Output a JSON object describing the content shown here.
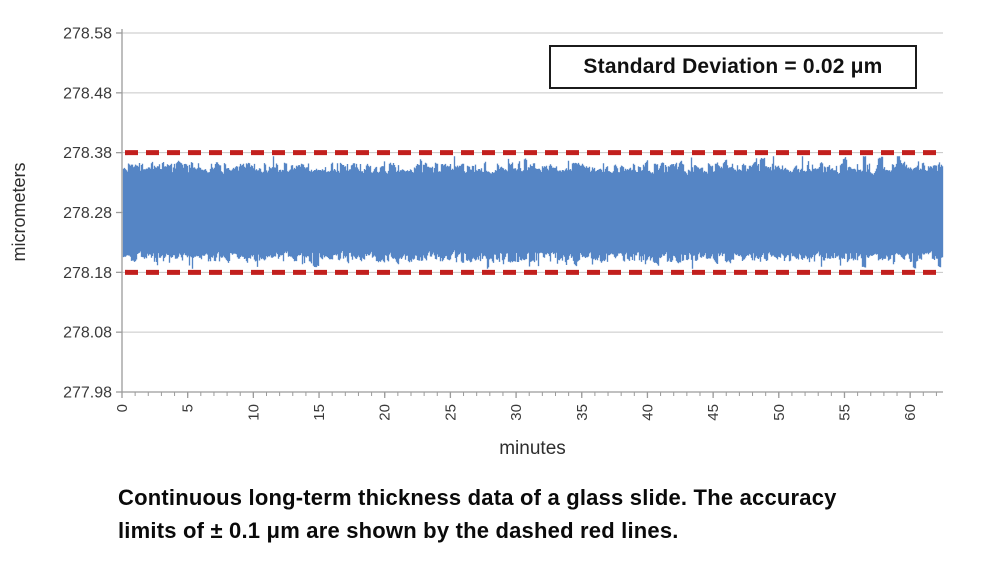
{
  "annotation": {
    "text": "Standard Deviation = 0.02 μm"
  },
  "caption": {
    "line1": "Continuous long-term thickness data of a glass slide. The accuracy",
    "line2": "limits of ± 0.1 μm are shown by the dashed red lines."
  },
  "chart_data": {
    "type": "line",
    "title": "",
    "xlabel": "minutes",
    "ylabel": "micrometers",
    "x_range": [
      0,
      62.5
    ],
    "y_range": [
      277.98,
      278.58
    ],
    "x_major_ticks": [
      0,
      5,
      10,
      15,
      20,
      25,
      30,
      35,
      40,
      45,
      50,
      55,
      60
    ],
    "x_minor_step": 1,
    "x_minor_max": 62,
    "y_ticks": [
      277.98,
      278.08,
      278.18,
      278.28,
      278.38,
      278.48,
      278.58
    ],
    "grid": true,
    "legend": "none",
    "series": {
      "name": "glass slide thickness",
      "description": "dense noisy thickness trace rendered as a filled band",
      "mean": 278.28,
      "std": 0.02,
      "band_top_mean": 278.355,
      "band_bottom_mean": 278.205,
      "band_top_max": 278.374,
      "band_bottom_min": 278.186,
      "duration_minutes": 62.5,
      "noise_seed": 20
    },
    "reference_lines": [
      {
        "name": "upper accuracy limit",
        "value": 278.38
      },
      {
        "name": "lower accuracy limit",
        "value": 278.18
      }
    ],
    "colors": {
      "series_blue": "#5585C5",
      "limit_red": "#C2201E",
      "gridline": "#C6C6C6",
      "axis": "#9B9B9B",
      "tick_text": "#3A3A3A"
    }
  }
}
